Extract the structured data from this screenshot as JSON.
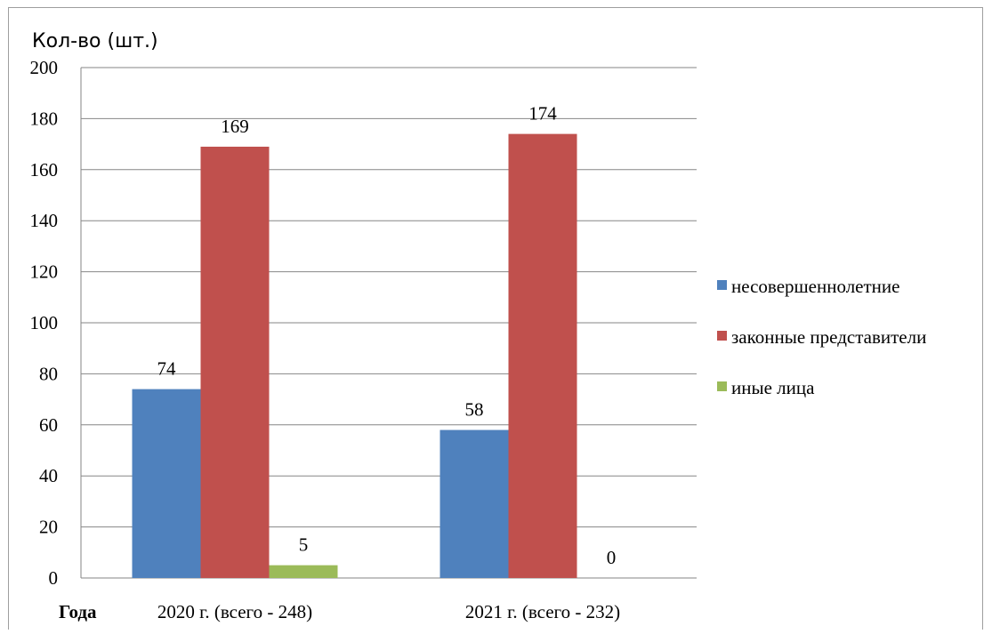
{
  "chart_data": {
    "type": "bar",
    "ylabel": "Кол-во (шт.)",
    "xlabel": "Года",
    "categories": [
      "2020 г. (всего - 248)",
      "2021 г. (всего - 232)"
    ],
    "series": [
      {
        "name": "несовершеннолетние",
        "values": [
          74,
          58
        ],
        "color": "#4f81bd"
      },
      {
        "name": "законные представители",
        "values": [
          169,
          174
        ],
        "color": "#c0504d"
      },
      {
        "name": "иные лица",
        "values": [
          5,
          0
        ],
        "color": "#9bbb59"
      }
    ],
    "ylim": [
      0,
      200
    ],
    "yticks": [
      0,
      20,
      40,
      60,
      80,
      100,
      120,
      140,
      160,
      180,
      200
    ],
    "grid": true,
    "legend_position": "right"
  }
}
